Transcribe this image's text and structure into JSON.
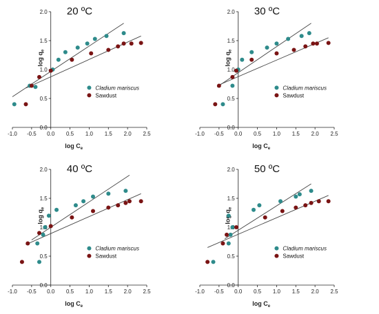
{
  "colors": {
    "cladium": "#2e8b8b",
    "sawdust": "#7a1414",
    "fit_line": "#444444",
    "axis": "#222222"
  },
  "chart_data": [
    {
      "type": "scatter",
      "title": "20 ºC",
      "xlabel": "log C",
      "xlabel_sub": "e",
      "ylabel": "log q",
      "ylabel_sub": "e",
      "xlim": [
        -1.0,
        2.5
      ],
      "ylim": [
        0.0,
        2.0
      ],
      "x_ticks": [
        "-1.0",
        "-0.5",
        "0.0",
        "0.5",
        "1.0",
        "1.5",
        "2.0",
        "2.5"
      ],
      "y_ticks": [
        "0.0",
        "0.5",
        "1.0",
        "1.5",
        "2.0"
      ],
      "legend_position": "right-center",
      "series": [
        {
          "name": "Cladium mariscus",
          "color": "#2e8b8b",
          "points": [
            [
              -0.95,
              0.4
            ],
            [
              -0.55,
              0.72
            ],
            [
              -0.4,
              0.7
            ],
            [
              0.05,
              1.0
            ],
            [
              0.2,
              1.17
            ],
            [
              0.38,
              1.3
            ],
            [
              0.7,
              1.38
            ],
            [
              0.95,
              1.45
            ],
            [
              1.15,
              1.53
            ],
            [
              1.45,
              1.58
            ],
            [
              1.9,
              1.63
            ]
          ],
          "fit": [
            [
              -1.0,
              0.53
            ],
            [
              1.9,
              1.8
            ]
          ]
        },
        {
          "name": "Sawdust",
          "color": "#7a1414",
          "points": [
            [
              -0.65,
              0.4
            ],
            [
              -0.5,
              0.72
            ],
            [
              -0.3,
              0.87
            ],
            [
              0.0,
              0.98
            ],
            [
              0.55,
              1.17
            ],
            [
              1.05,
              1.28
            ],
            [
              1.5,
              1.34
            ],
            [
              1.75,
              1.4
            ],
            [
              1.9,
              1.45
            ],
            [
              2.1,
              1.45
            ],
            [
              2.35,
              1.46
            ]
          ],
          "fit": [
            [
              -0.65,
              0.68
            ],
            [
              2.35,
              1.58
            ]
          ]
        }
      ]
    },
    {
      "type": "scatter",
      "title": "30 ºC",
      "xlabel": "log C",
      "xlabel_sub": "e",
      "ylabel": "log q",
      "ylabel_sub": "e",
      "xlim": [
        -1.0,
        2.5
      ],
      "ylim": [
        0.0,
        2.0
      ],
      "x_ticks": [
        "-1.0",
        "-0.5",
        "0.0",
        "0.5",
        "1.0",
        "1.5",
        "2.0",
        "2.5"
      ],
      "y_ticks": [
        "0.0",
        "0.5",
        "1.0",
        "1.5",
        "2.0"
      ],
      "legend_position": "right-center",
      "series": [
        {
          "name": "Cladium mariscus",
          "color": "#2e8b8b",
          "points": [
            [
              -0.4,
              0.4
            ],
            [
              -0.15,
              0.72
            ],
            [
              0.0,
              1.0
            ],
            [
              0.1,
              1.17
            ],
            [
              0.35,
              1.3
            ],
            [
              0.75,
              1.38
            ],
            [
              1.0,
              1.45
            ],
            [
              1.3,
              1.53
            ],
            [
              1.65,
              1.58
            ],
            [
              1.85,
              1.63
            ]
          ],
          "fit": [
            [
              -0.55,
              0.7
            ],
            [
              1.9,
              1.8
            ]
          ]
        },
        {
          "name": "Sawdust",
          "color": "#7a1414",
          "points": [
            [
              -0.6,
              0.4
            ],
            [
              -0.5,
              0.72
            ],
            [
              -0.15,
              0.87
            ],
            [
              -0.05,
              0.98
            ],
            [
              0.35,
              1.17
            ],
            [
              1.0,
              1.28
            ],
            [
              1.45,
              1.34
            ],
            [
              1.75,
              1.4
            ],
            [
              1.95,
              1.45
            ],
            [
              2.05,
              1.45
            ],
            [
              2.35,
              1.46
            ]
          ],
          "fit": [
            [
              -0.55,
              0.72
            ],
            [
              2.35,
              1.55
            ]
          ]
        }
      ]
    },
    {
      "type": "scatter",
      "title": "40 ºC",
      "xlabel": "log C",
      "xlabel_sub": "e",
      "ylabel": "log q",
      "ylabel_sub": "e",
      "xlim": [
        -1.0,
        2.5
      ],
      "ylim": [
        0.0,
        2.0
      ],
      "x_ticks": [
        "-1.0",
        "-0.5",
        "0.0",
        "0.5",
        "1.0",
        "1.5",
        "2.0",
        "2.5"
      ],
      "y_ticks": [
        "0.0",
        "0.5",
        "1.0",
        "1.5",
        "2.0"
      ],
      "legend_position": "right-bottom",
      "series": [
        {
          "name": "Cladium mariscus",
          "color": "#2e8b8b",
          "points": [
            [
              -0.3,
              0.4
            ],
            [
              -0.35,
              0.72
            ],
            [
              -0.2,
              0.87
            ],
            [
              -0.15,
              1.0
            ],
            [
              -0.05,
              1.2
            ],
            [
              0.15,
              1.3
            ],
            [
              0.65,
              1.38
            ],
            [
              0.85,
              1.45
            ],
            [
              1.1,
              1.53
            ],
            [
              1.5,
              1.58
            ],
            [
              1.95,
              1.63
            ]
          ],
          "fit": [
            [
              -0.5,
              0.78
            ],
            [
              2.05,
              1.9
            ]
          ]
        },
        {
          "name": "Sawdust",
          "color": "#7a1414",
          "points": [
            [
              -0.75,
              0.4
            ],
            [
              -0.6,
              0.72
            ],
            [
              -0.3,
              0.9
            ],
            [
              0.0,
              1.02
            ],
            [
              0.55,
              1.17
            ],
            [
              1.1,
              1.28
            ],
            [
              1.5,
              1.34
            ],
            [
              1.75,
              1.38
            ],
            [
              1.95,
              1.42
            ],
            [
              2.05,
              1.45
            ],
            [
              2.35,
              1.45
            ]
          ],
          "fit": [
            [
              -0.65,
              0.7
            ],
            [
              2.35,
              1.58
            ]
          ]
        }
      ]
    },
    {
      "type": "scatter",
      "title": "50 ºC",
      "xlabel": "log C",
      "xlabel_sub": "e",
      "ylabel": "log q",
      "ylabel_sub": "e",
      "xlim": [
        -1.0,
        2.5
      ],
      "ylim": [
        0.0,
        2.0
      ],
      "x_ticks": [
        "-1.0",
        "-0.5",
        "0.0",
        "0.5",
        "1.0",
        "1.5",
        "2.0",
        "2.5"
      ],
      "y_ticks": [
        "0.0",
        "0.5",
        "1.0",
        "1.5",
        "2.0"
      ],
      "legend_position": "right-bottom",
      "series": [
        {
          "name": "Cladium mariscus",
          "color": "#2e8b8b",
          "points": [
            [
              -0.65,
              0.4
            ],
            [
              -0.25,
              0.72
            ],
            [
              -0.2,
              0.87
            ],
            [
              -0.15,
              1.0
            ],
            [
              -0.25,
              1.2
            ],
            [
              0.4,
              1.3
            ],
            [
              0.55,
              1.38
            ],
            [
              1.1,
              1.45
            ],
            [
              1.5,
              1.53
            ],
            [
              1.6,
              1.57
            ],
            [
              1.9,
              1.63
            ]
          ],
          "fit": [
            [
              -0.35,
              0.8
            ],
            [
              1.9,
              1.75
            ]
          ]
        },
        {
          "name": "Sawdust",
          "color": "#7a1414",
          "points": [
            [
              -0.8,
              0.4
            ],
            [
              -0.4,
              0.72
            ],
            [
              -0.3,
              0.87
            ],
            [
              -0.05,
              1.0
            ],
            [
              0.7,
              1.17
            ],
            [
              1.15,
              1.28
            ],
            [
              1.5,
              1.34
            ],
            [
              1.75,
              1.38
            ],
            [
              1.9,
              1.42
            ],
            [
              2.1,
              1.45
            ],
            [
              2.35,
              1.45
            ]
          ],
          "fit": [
            [
              -0.8,
              0.65
            ],
            [
              2.35,
              1.55
            ]
          ]
        }
      ]
    }
  ]
}
